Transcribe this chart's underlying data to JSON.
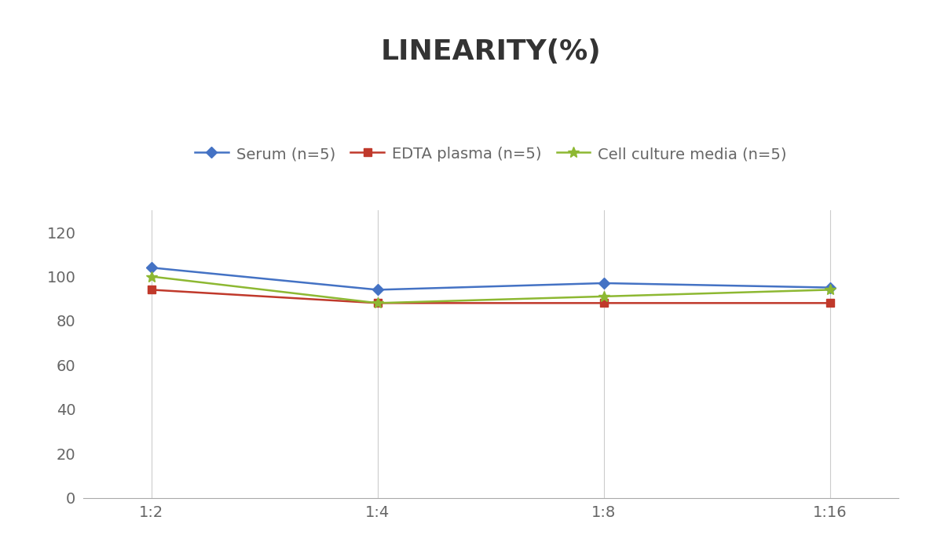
{
  "title": "LINEARITY(%)",
  "x_labels": [
    "1:2",
    "1:4",
    "1:8",
    "1:16"
  ],
  "x_positions": [
    0,
    1,
    2,
    3
  ],
  "series": [
    {
      "label": "Serum (n=5)",
      "values": [
        104,
        94,
        97,
        95
      ],
      "color": "#4472C4",
      "marker": "D",
      "marker_size": 7,
      "linewidth": 1.8
    },
    {
      "label": "EDTA plasma (n=5)",
      "values": [
        94,
        88,
        88,
        88
      ],
      "color": "#C0392B",
      "marker": "s",
      "marker_size": 7,
      "linewidth": 1.8
    },
    {
      "label": "Cell culture media (n=5)",
      "values": [
        100,
        88,
        91,
        94
      ],
      "color": "#8DB832",
      "marker": "*",
      "marker_size": 10,
      "linewidth": 1.8
    }
  ],
  "ylim": [
    0,
    130
  ],
  "yticks": [
    0,
    20,
    40,
    60,
    80,
    100,
    120
  ],
  "background_color": "#ffffff",
  "title_fontsize": 26,
  "title_fontweight": "bold",
  "title_color": "#333333",
  "legend_fontsize": 14,
  "tick_fontsize": 14,
  "tick_color": "#666666",
  "grid_color": "#cccccc",
  "grid_linewidth": 0.8,
  "spine_color": "#aaaaaa"
}
